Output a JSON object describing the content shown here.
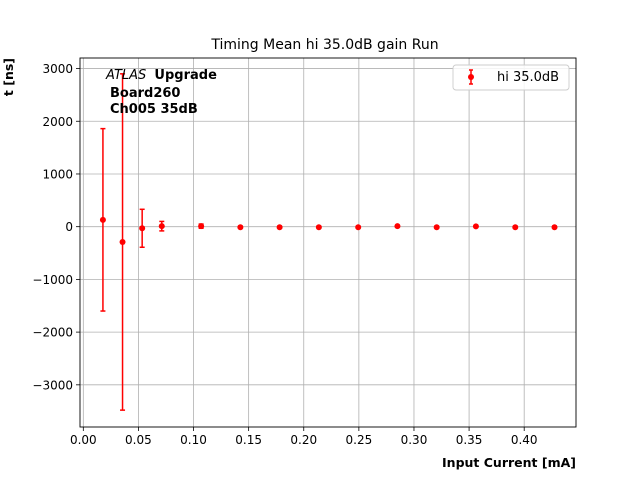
{
  "chart_data": {
    "type": "scatter",
    "title": "Timing Mean hi 35.0dB gain Run",
    "xlabel": "Input Current [mA]",
    "ylabel": "t [ns]",
    "xlim": [
      -0.003,
      0.447
    ],
    "ylim": [
      -3800,
      3200
    ],
    "xticks": [
      0.0,
      0.05,
      0.1,
      0.15,
      0.2,
      0.25,
      0.3,
      0.35,
      0.4
    ],
    "xtick_labels": [
      "0.00",
      "0.05",
      "0.10",
      "0.15",
      "0.20",
      "0.25",
      "0.30",
      "0.35",
      "0.40"
    ],
    "yticks": [
      -3000,
      -2000,
      -1000,
      0,
      1000,
      2000,
      3000
    ],
    "ytick_labels": [
      "−3000",
      "−2000",
      "−1000",
      "0",
      "1000",
      "2000",
      "3000"
    ],
    "grid": true,
    "legend_position": "upper right",
    "annotation": {
      "atlas": "ATLAS",
      "upgrade": "Upgrade",
      "line2": "Board260",
      "line3": "Ch005 35dB"
    },
    "series": [
      {
        "name": "hi 35.0dB",
        "color": "#ff0000",
        "x": [
          0.0178,
          0.0356,
          0.0534,
          0.0712,
          0.1069,
          0.1425,
          0.1781,
          0.2137,
          0.2494,
          0.285,
          0.3206,
          0.3562,
          0.3919,
          0.4275
        ],
        "y": [
          130,
          -290,
          -30,
          10,
          10,
          -10,
          -10,
          -10,
          -10,
          10,
          -10,
          5,
          -10,
          -10
        ],
        "yerr": [
          1730,
          3190,
          360,
          90,
          40,
          10,
          10,
          10,
          10,
          10,
          10,
          10,
          10,
          10
        ]
      }
    ]
  }
}
